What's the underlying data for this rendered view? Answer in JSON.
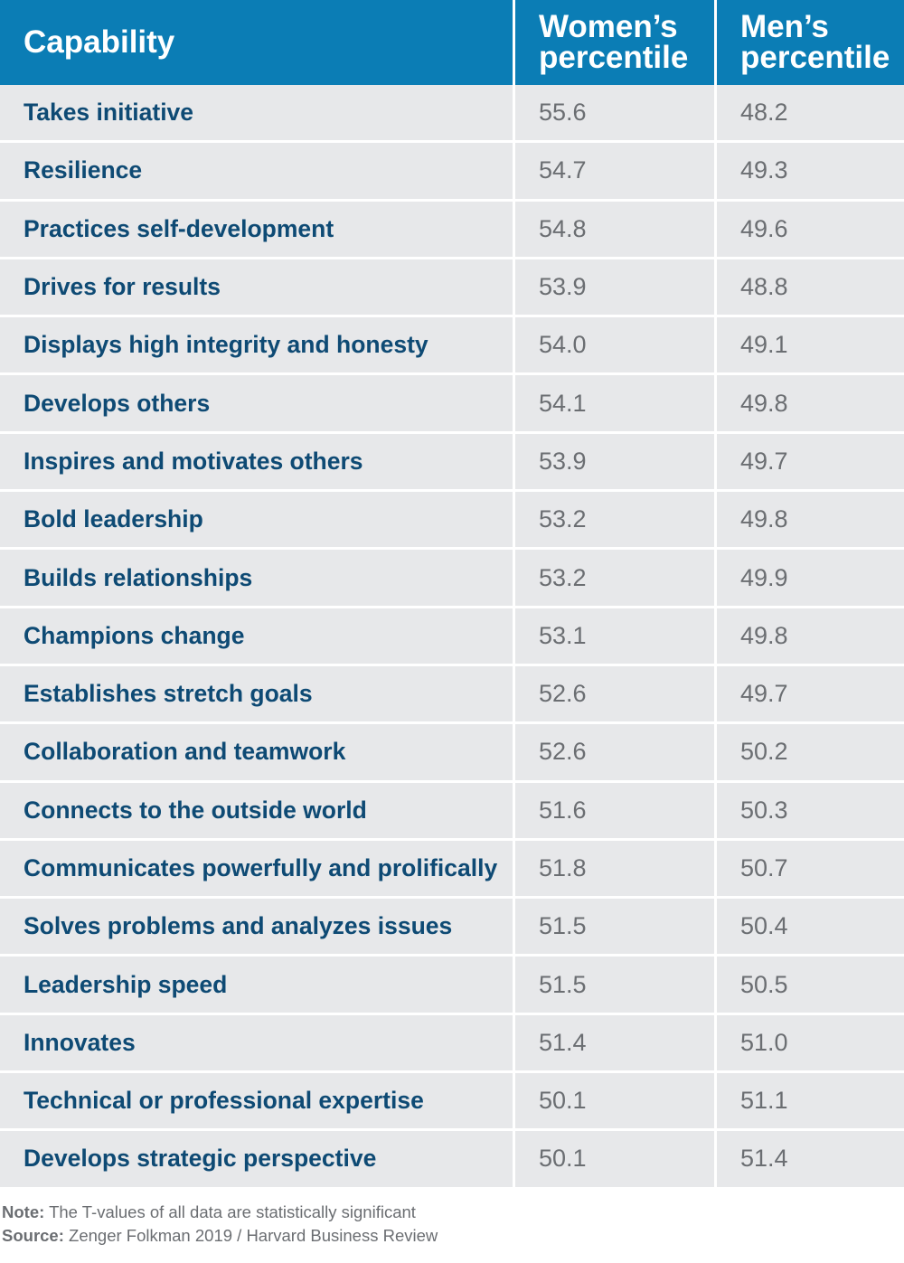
{
  "chart_data": {
    "type": "table",
    "columns": [
      "Capability",
      "Women’s percentile",
      "Men’s percentile"
    ],
    "rows": [
      {
        "capability": "Takes initiative",
        "women": "55.6",
        "men": "48.2"
      },
      {
        "capability": "Resilience",
        "women": "54.7",
        "men": "49.3"
      },
      {
        "capability": "Practices self-development",
        "women": "54.8",
        "men": "49.6"
      },
      {
        "capability": "Drives for results",
        "women": "53.9",
        "men": "48.8"
      },
      {
        "capability": "Displays high integrity and honesty",
        "women": "54.0",
        "men": "49.1"
      },
      {
        "capability": "Develops others",
        "women": "54.1",
        "men": "49.8"
      },
      {
        "capability": "Inspires and motivates others",
        "women": "53.9",
        "men": "49.7"
      },
      {
        "capability": "Bold leadership",
        "women": "53.2",
        "men": "49.8"
      },
      {
        "capability": "Builds relationships",
        "women": "53.2",
        "men": "49.9"
      },
      {
        "capability": "Champions change",
        "women": "53.1",
        "men": "49.8"
      },
      {
        "capability": "Establishes stretch goals",
        "women": "52.6",
        "men": "49.7"
      },
      {
        "capability": "Collaboration and teamwork",
        "women": "52.6",
        "men": "50.2"
      },
      {
        "capability": "Connects to the outside world",
        "women": "51.6",
        "men": "50.3"
      },
      {
        "capability": "Communicates powerfully and prolifically",
        "women": "51.8",
        "men": "50.7"
      },
      {
        "capability": "Solves problems and analyzes issues",
        "women": "51.5",
        "men": "50.4"
      },
      {
        "capability": "Leadership speed",
        "women": "51.5",
        "men": "50.5"
      },
      {
        "capability": "Innovates",
        "women": "51.4",
        "men": "51.0"
      },
      {
        "capability": "Technical or professional expertise",
        "women": "50.1",
        "men": "51.1"
      },
      {
        "capability": "Develops strategic perspective",
        "women": "50.1",
        "men": "51.4"
      }
    ]
  },
  "header": {
    "capability": "Capability",
    "women_line1": "Women’s",
    "women_line2": "percentile",
    "men_line1": "Men’s",
    "men_line2": "percentile"
  },
  "footer": {
    "note_label": "Note:",
    "note_text": " The T-values of all data are statistically significant",
    "source_label": "Source:",
    "source_text": " Zenger Folkman 2019 / Harvard Business Review"
  },
  "colors": {
    "header_bg": "#0b7db5",
    "row_bg": "#e7e8ea",
    "label_text": "#0e4a74",
    "value_text": "#6b6e72"
  }
}
